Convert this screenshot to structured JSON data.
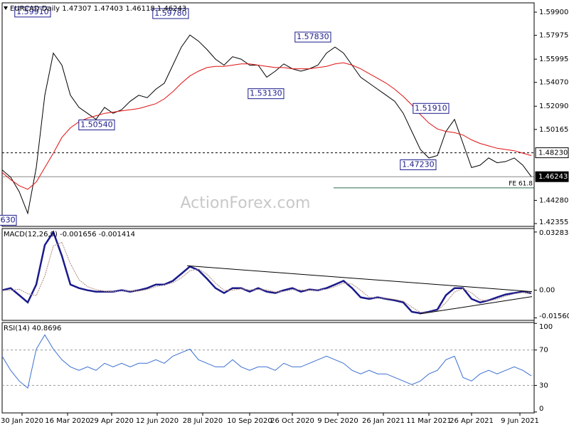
{
  "chart_data": [
    {
      "type": "line",
      "title": "EURCAD Daily  1.47307 1.47403 1.46118 1.46243",
      "watermark": "ActionForex.com",
      "x": [
        0,
        6,
        12,
        18,
        24,
        30,
        36,
        42,
        48,
        54,
        60,
        66,
        72,
        78,
        84,
        90,
        96,
        102,
        108,
        114,
        120,
        126,
        132,
        138,
        144,
        150,
        156,
        162,
        168,
        174,
        180,
        186,
        192,
        198,
        204,
        210,
        216,
        222,
        228,
        234,
        240,
        246,
        252,
        258,
        264,
        270,
        276,
        282,
        288,
        294,
        300,
        306,
        312,
        318,
        324,
        330,
        336,
        342,
        348,
        354,
        360,
        366,
        372
      ],
      "xlim": [
        0,
        374
      ],
      "xticks": [
        {
          "value": 14,
          "label": "30 Jan 2020"
        },
        {
          "value": 46,
          "label": "16 Mar 2020"
        },
        {
          "value": 77,
          "label": "29 Apr 2020"
        },
        {
          "value": 109,
          "label": "12 Jun 2020"
        },
        {
          "value": 141,
          "label": "28 Jul 2020"
        },
        {
          "value": 174,
          "label": "10 Sep 2020"
        },
        {
          "value": 204,
          "label": "26 Oct 2020"
        },
        {
          "value": 236,
          "label": "9 Dec 2020"
        },
        {
          "value": 268,
          "label": "26 Jan 2021"
        },
        {
          "value": 300,
          "label": "11 Mar 2021"
        },
        {
          "value": 330,
          "label": "26 Apr 2021"
        },
        {
          "value": 364,
          "label": "9 Jun 2021"
        }
      ],
      "ylim": [
        1.4212,
        1.6067
      ],
      "yticks": [
        {
          "value": 1.599,
          "label": "1.59900"
        },
        {
          "value": 1.57975,
          "label": "1.57975"
        },
        {
          "value": 1.55995,
          "label": "1.55995"
        },
        {
          "value": 1.5407,
          "label": "1.54070"
        },
        {
          "value": 1.5209,
          "label": "1.52090"
        },
        {
          "value": 1.50165,
          "label": "1.50165"
        },
        {
          "value": 1.4428,
          "label": "1.44280"
        },
        {
          "value": 1.42355,
          "label": "1.42355"
        }
      ],
      "series": [
        {
          "color": "#000000",
          "values": [
            1.468,
            1.462,
            1.45,
            1.432,
            1.47,
            1.53,
            1.565,
            1.555,
            1.53,
            1.52,
            1.515,
            1.51,
            1.52,
            1.515,
            1.518,
            1.525,
            1.53,
            1.528,
            1.535,
            1.54,
            1.555,
            1.57,
            1.58,
            1.575,
            1.568,
            1.56,
            1.555,
            1.562,
            1.56,
            1.555,
            1.555,
            1.545,
            1.55,
            1.556,
            1.552,
            1.55,
            1.552,
            1.555,
            1.565,
            1.57,
            1.565,
            1.555,
            1.545,
            1.54,
            1.535,
            1.53,
            1.525,
            1.515,
            1.5,
            1.485,
            1.478,
            1.48,
            1.5,
            1.51,
            1.49,
            1.47,
            1.472,
            1.478,
            1.474,
            1.475,
            1.478,
            1.472,
            1.46243
          ]
        },
        {
          "color": "#e01010",
          "values": [
            1.466,
            1.46,
            1.455,
            1.452,
            1.458,
            1.47,
            1.482,
            1.495,
            1.503,
            1.508,
            1.511,
            1.513,
            1.515,
            1.516,
            1.517,
            1.518,
            1.519,
            1.521,
            1.523,
            1.527,
            1.533,
            1.54,
            1.546,
            1.55,
            1.553,
            1.554,
            1.554,
            1.555,
            1.556,
            1.556,
            1.555,
            1.554,
            1.553,
            1.553,
            1.552,
            1.552,
            1.552,
            1.553,
            1.554,
            1.556,
            1.557,
            1.555,
            1.552,
            1.548,
            1.544,
            1.54,
            1.535,
            1.529,
            1.522,
            1.514,
            1.507,
            1.502,
            1.5,
            1.499,
            1.497,
            1.493,
            1.49,
            1.488,
            1.486,
            1.485,
            1.484,
            1.482,
            1.48
          ]
        }
      ],
      "levels": [
        {
          "value": 1.4823,
          "label": "1.48230",
          "style": "dashed"
        },
        {
          "value": 1.46243,
          "label": "1.46243",
          "style": "solid"
        }
      ],
      "fib": {
        "value": 1.4532,
        "label": "FE 61.8",
        "x_range": [
          233,
          374
        ]
      },
      "annotations": [
        {
          "x": 34,
          "value": 1.5991,
          "label": "1.59910"
        },
        {
          "x": 131,
          "value": 1.5978,
          "label": "1.59780"
        },
        {
          "x": 231,
          "value": 1.5783,
          "label": "1.57830"
        },
        {
          "x": 198,
          "value": 1.5313,
          "label": "1.53130"
        },
        {
          "x": 79,
          "value": 1.5054,
          "label": "1.50540"
        },
        {
          "x": 314,
          "value": 1.5191,
          "label": "1.51910"
        },
        {
          "x": 305,
          "value": 1.4723,
          "label": "1.47230"
        },
        {
          "x": 10,
          "value": 1.4263,
          "label": "630"
        }
      ]
    },
    {
      "type": "line",
      "title": "MACD(12,26,9) -0.001656 -0.001414",
      "ylim": [
        -0.017,
        0.0348
      ],
      "yticks": [
        0.032834,
        {
          "value": 0,
          "label": "0.00"
        },
        -0.015604
      ],
      "series": [
        {
          "color": "#1a1a8c",
          "values": [
            0,
            0.0012,
            -0.0028,
            -0.0069,
            0.0032,
            0.0255,
            0.0328,
            0.0194,
            0.0032,
            0.0012,
            0,
            -0.0008,
            -0.0008,
            -0.0008,
            0,
            -0.0008,
            0,
            0.0012,
            0.0032,
            0.0032,
            0.0053,
            0.0093,
            0.0134,
            0.0113,
            0.0065,
            0.0012,
            -0.0016,
            0.0012,
            0.0012,
            -0.0008,
            0.0012,
            -0.0008,
            -0.0016,
            0,
            0.0012,
            -0.0008,
            0.0004,
            0,
            0.0012,
            0.0032,
            0.0053,
            0.0012,
            -0.004,
            -0.0049,
            -0.004,
            -0.0049,
            -0.0057,
            -0.0069,
            -0.0122,
            -0.013,
            -0.0122,
            -0.0109,
            -0.0028,
            0.0012,
            0.0012,
            -0.0049,
            -0.0069,
            -0.0057,
            -0.004,
            -0.0024,
            -0.0016,
            -0.0008,
            -0.0017
          ]
        },
        {
          "color": "#b08a7a",
          "values": [
            0,
            0,
            0.0006,
            -0.002,
            -0.003,
            0.008,
            0.025,
            0.027,
            0.015,
            0.006,
            0.002,
            0.0003,
            -0.0005,
            -0.0008,
            -0.0004,
            -0.0004,
            -0.0004,
            0.0004,
            0.002,
            0.003,
            0.0042,
            0.007,
            0.011,
            0.012,
            0.009,
            0.004,
            0,
            0,
            0.0008,
            0.0002,
            0.0004,
            0.0002,
            -0.001,
            -0.0006,
            0.0004,
            0.0002,
            0,
            0.0002,
            0.0006,
            0.002,
            0.004,
            0.0035,
            0,
            -0.004,
            -0.0045,
            -0.0045,
            -0.0052,
            -0.0062,
            -0.0095,
            -0.0125,
            -0.0125,
            -0.0115,
            -0.007,
            -0.001,
            0.001,
            -0.0015,
            -0.0055,
            -0.006,
            -0.005,
            -0.0033,
            -0.002,
            -0.0012,
            -0.0014
          ]
        }
      ],
      "trendlines": [
        {
          "x": [
            130,
            372.5
          ],
          "values": [
            0.0138,
            -0.0008
          ]
        },
        {
          "x": [
            293.5,
            372.5
          ],
          "values": [
            -0.0134,
            -0.0036
          ]
        }
      ]
    },
    {
      "type": "line",
      "title": "RSI(14) 40.8696",
      "ylim": [
        -1,
        101
      ],
      "yticks": [
        100,
        70,
        30,
        0
      ],
      "levels": [
        70,
        30
      ],
      "series": [
        {
          "color": "#3a6fd0",
          "values": [
            63,
            47,
            35,
            27,
            71,
            87,
            71,
            59,
            51,
            47,
            51,
            47,
            55,
            51,
            55,
            51,
            55,
            55,
            59,
            55,
            63,
            67,
            71,
            59,
            55,
            51,
            51,
            59,
            51,
            47,
            51,
            51,
            47,
            55,
            51,
            51,
            55,
            59,
            63,
            59,
            55,
            47,
            43,
            47,
            43,
            43,
            39,
            35,
            31,
            35,
            43,
            47,
            59,
            63,
            39,
            35,
            43,
            47,
            43,
            47,
            51,
            47,
            40.87
          ]
        }
      ]
    }
  ]
}
